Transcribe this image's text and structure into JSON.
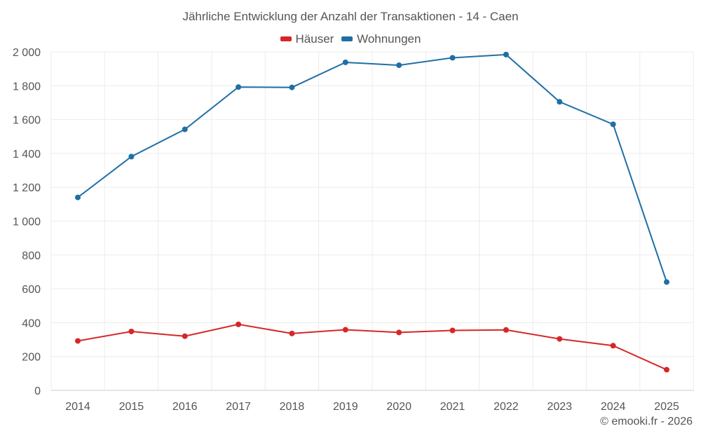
{
  "chart_data": {
    "type": "line",
    "title": "Jährliche Entwicklung der Anzahl der Transaktionen - 14 - Caen",
    "xlabel": "",
    "ylabel": "",
    "categories": [
      "2014",
      "2015",
      "2016",
      "2017",
      "2018",
      "2019",
      "2020",
      "2021",
      "2022",
      "2023",
      "2024",
      "2025"
    ],
    "ylim": [
      0,
      2000
    ],
    "yticks": [
      0,
      200,
      400,
      600,
      800,
      1000,
      1200,
      1400,
      1600,
      1800,
      2000
    ],
    "ytick_labels": [
      "0",
      "200",
      "400",
      "600",
      "800",
      "1 000",
      "1 200",
      "1 400",
      "1 600",
      "1 800",
      "2 000"
    ],
    "grid": true,
    "legend_position": "top",
    "series": [
      {
        "name": "Häuser",
        "color": "#d62728",
        "values": [
          292,
          348,
          320,
          390,
          336,
          358,
          342,
          354,
          357,
          304,
          264,
          122
        ]
      },
      {
        "name": "Wohnungen",
        "color": "#1f6fa5",
        "values": [
          1140,
          1381,
          1542,
          1792,
          1790,
          1938,
          1921,
          1965,
          1984,
          1705,
          1572,
          640
        ]
      }
    ]
  },
  "credit": "© emooki.fr - 2026"
}
